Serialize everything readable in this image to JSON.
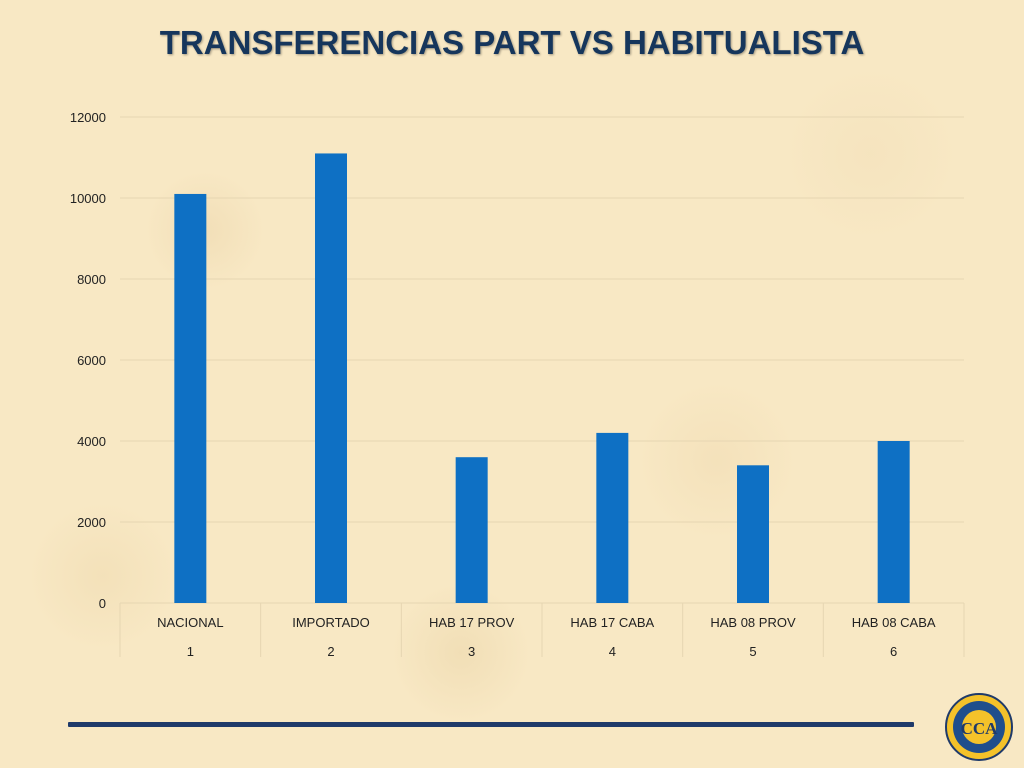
{
  "title": "TRANSFERENCIAS PART VS HABITUALISTA",
  "colors": {
    "bar": "#0e70c4",
    "title": "#16365c",
    "rule": "#1f3a6a",
    "background": "#f8e8c4"
  },
  "logo": {
    "icon": "cca-seal-icon",
    "text": "CCA"
  },
  "chart_data": {
    "type": "bar",
    "categories": [
      "NACIONAL",
      "IMPORTADO",
      "HAB 17 PROV",
      "HAB 17 CABA",
      "HAB 08 PROV",
      "HAB 08 CABA"
    ],
    "category_index": [
      "1",
      "2",
      "3",
      "4",
      "5",
      "6"
    ],
    "values": [
      10100,
      11100,
      3600,
      4200,
      3400,
      4000
    ],
    "yticks": [
      0,
      2000,
      4000,
      6000,
      8000,
      10000,
      12000
    ],
    "ylim": [
      0,
      12000
    ],
    "grid": true,
    "legend": "none"
  }
}
